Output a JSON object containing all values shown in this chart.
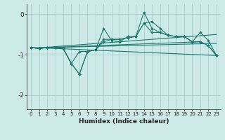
{
  "xlabel": "Humidex (Indice chaleur)",
  "background_color": "#ceeae8",
  "grid_color": "#aacfce",
  "line_color": "#1a7a6e",
  "xlim": [
    -0.5,
    23.5
  ],
  "ylim": [
    -2.35,
    0.25
  ],
  "yticks": [
    0,
    -1,
    -2
  ],
  "xticks": [
    0,
    1,
    2,
    3,
    4,
    5,
    6,
    7,
    8,
    9,
    10,
    11,
    12,
    13,
    14,
    15,
    16,
    17,
    18,
    19,
    20,
    21,
    22,
    23
  ],
  "series": [
    [
      -0.82,
      -0.85,
      -0.82,
      -0.82,
      -0.85,
      -1.22,
      -1.48,
      -0.92,
      -0.88,
      -0.35,
      -0.65,
      -0.68,
      -0.55,
      -0.55,
      0.05,
      -0.35,
      -0.45,
      -0.52,
      -0.55,
      -0.55,
      -0.68,
      -0.68,
      -0.78,
      -1.02
    ],
    [
      -0.82,
      -0.85,
      -0.82,
      -0.82,
      -0.85,
      -1.22,
      -0.92,
      -0.92,
      -0.88,
      -0.62,
      -0.62,
      -0.62,
      -0.58,
      -0.55,
      -0.22,
      -0.18,
      -0.35,
      -0.52,
      -0.55,
      -0.55,
      -0.68,
      -0.45,
      -0.65,
      -1.02
    ],
    [
      -0.82,
      -0.85,
      -0.82,
      -0.82,
      -0.85,
      -1.22,
      -1.48,
      -0.92,
      -0.88,
      -0.68,
      -0.62,
      -0.62,
      -0.58,
      -0.55,
      -0.22,
      -0.45,
      -0.45,
      -0.52,
      -0.55,
      -0.55,
      -0.68,
      -0.68,
      -0.78,
      -1.02
    ]
  ],
  "regression_lines": [
    {
      "x0": 1,
      "y0": -0.83,
      "x1": 21,
      "y1": -0.68
    },
    {
      "x0": 1,
      "y0": -0.83,
      "x1": 23,
      "y1": -0.5
    },
    {
      "x0": 0,
      "y0": -0.82,
      "x1": 23,
      "y1": -1.02
    },
    {
      "x0": 1,
      "y0": -0.83,
      "x1": 23,
      "y1": -0.72
    }
  ]
}
